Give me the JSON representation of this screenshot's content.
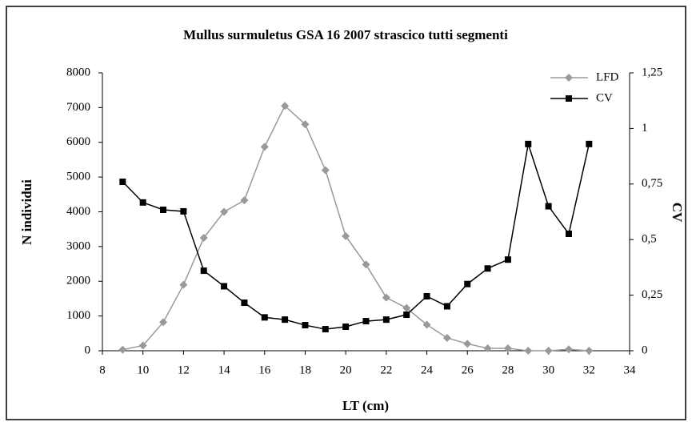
{
  "chart_data": {
    "type": "line",
    "title": "Mullus surmuletus GSA 16 2007 strascico tutti segmenti",
    "xlabel": "LT (cm)",
    "ylabel": "N individui",
    "y2label": "CV",
    "x": [
      9,
      10,
      11,
      12,
      13,
      14,
      15,
      16,
      17,
      18,
      19,
      20,
      21,
      22,
      23,
      24,
      25,
      26,
      27,
      28,
      29,
      30,
      31,
      32
    ],
    "series": [
      {
        "name": "LFD",
        "color": "#999999",
        "marker": "diamond",
        "values": [
          30,
          150,
          820,
          1900,
          3250,
          4000,
          4330,
          5870,
          7050,
          6520,
          5200,
          3300,
          2480,
          1530,
          1230,
          750,
          370,
          200,
          70,
          70,
          0,
          0,
          40,
          0
        ]
      },
      {
        "name": "CV",
        "color": "#000000",
        "marker": "square",
        "axis": "y2",
        "values": [
          0.76,
          0.667,
          0.634,
          0.627,
          0.36,
          0.29,
          0.216,
          0.15,
          0.14,
          0.115,
          0.097,
          0.108,
          0.133,
          0.14,
          0.162,
          0.245,
          0.2,
          0.3,
          0.37,
          0.41,
          0.93,
          0.65,
          0.526,
          0.93
        ]
      }
    ],
    "xlim": [
      8,
      34
    ],
    "xticks": [
      8,
      10,
      12,
      14,
      16,
      18,
      20,
      22,
      24,
      26,
      28,
      30,
      32,
      34
    ],
    "ylim": [
      0,
      8000
    ],
    "yticks": [
      0,
      1000,
      2000,
      3000,
      4000,
      5000,
      6000,
      7000,
      8000
    ],
    "y2lim": [
      0,
      1.25
    ],
    "y2ticks": [
      0,
      {
        "value": 0.25,
        "label": "0,25"
      },
      {
        "value": 0.5,
        "label": "0,5"
      },
      {
        "value": 0.75,
        "label": "0,75"
      },
      1,
      {
        "value": 1.25,
        "label": "1,25"
      }
    ],
    "grid": false,
    "legend": "upper right"
  }
}
